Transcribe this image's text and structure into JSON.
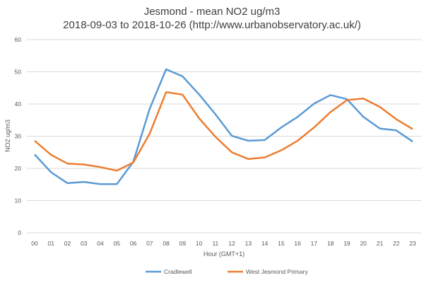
{
  "chart_data": {
    "type": "line",
    "title": "Jesmond - mean NO2 ug/m3",
    "subtitle": "2018-09-03 to 2018-10-26 (http://www.urbanobservatory.ac.uk/)",
    "xlabel": "Hour (GMT+1)",
    "ylabel": "NO2 ug/m3",
    "ylim": [
      0,
      60
    ],
    "yticks": [
      "0",
      "10",
      "20",
      "30",
      "40",
      "50",
      "60"
    ],
    "categories": [
      "00",
      "01",
      "02",
      "03",
      "04",
      "05",
      "06",
      "07",
      "08",
      "09",
      "10",
      "11",
      "12",
      "13",
      "14",
      "15",
      "16",
      "17",
      "18",
      "19",
      "20",
      "21",
      "22",
      "23"
    ],
    "grid": true,
    "legend_position": "bottom",
    "series": [
      {
        "name": "Cradlewell",
        "color": "#5B9BD5",
        "values": [
          24.3,
          18.8,
          15.4,
          15.8,
          15.1,
          15.1,
          22.0,
          38.5,
          50.8,
          48.6,
          43.0,
          36.8,
          30.1,
          28.6,
          28.8,
          32.7,
          36.0,
          40.1,
          42.8,
          41.5,
          36.0,
          32.4,
          31.8,
          28.3
        ]
      },
      {
        "name": "West Jesmond Primary",
        "color": "#ED7D31",
        "values": [
          28.6,
          24.2,
          21.5,
          21.2,
          20.4,
          19.3,
          21.8,
          30.8,
          43.7,
          42.9,
          35.6,
          29.8,
          25.0,
          22.9,
          23.4,
          25.6,
          28.6,
          32.7,
          37.5,
          41.2,
          41.7,
          39.1,
          35.3,
          32.2
        ]
      }
    ]
  }
}
